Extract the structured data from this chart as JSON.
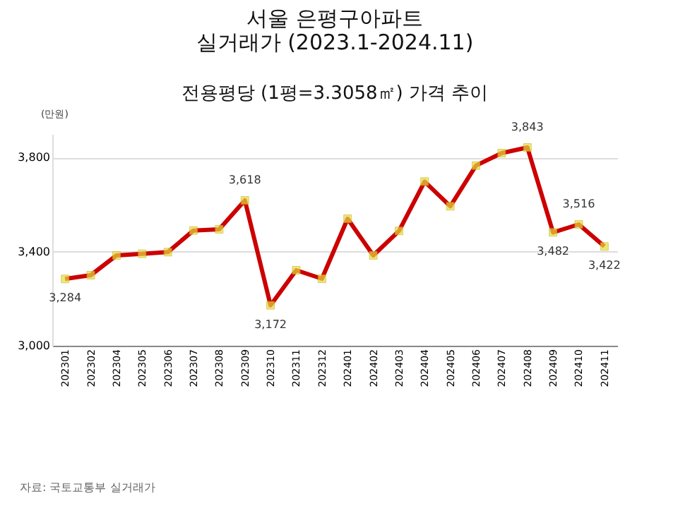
{
  "chart_data": {
    "type": "line",
    "title": "서울 은평구아파트\n실거래가 (2023.1-2024.11)",
    "subtitle": "전용평당 (1평=3.3058㎡) 가격 추이",
    "ylabel": "(만원)",
    "categories": [
      "202301",
      "202302",
      "202304",
      "202305",
      "202306",
      "202307",
      "202308",
      "202309",
      "202310",
      "202311",
      "202312",
      "202401",
      "202402",
      "202403",
      "202404",
      "202405",
      "202406",
      "202407",
      "202408",
      "202409",
      "202410",
      "202411"
    ],
    "series": [
      {
        "color": "#cc0000",
        "values": [
          3284,
          3300,
          3384,
          3391,
          3398,
          3490,
          3495,
          3618,
          3172,
          3321,
          3285,
          3540,
          3384,
          3488,
          3698,
          3593,
          3766,
          3819,
          3843,
          3482,
          3516,
          3422
        ],
        "value_labels": [
          "3,284",
          null,
          null,
          null,
          null,
          null,
          null,
          "3,618",
          "3,172",
          null,
          null,
          null,
          null,
          null,
          null,
          null,
          null,
          null,
          "3,843",
          "3,482",
          "3,516",
          "3,422"
        ]
      }
    ],
    "marker": "square",
    "ylim": [
      3000,
      3900
    ],
    "yticks": [
      {
        "value": 3000,
        "label": "3,000"
      },
      {
        "value": 3400,
        "label": "3,400"
      },
      {
        "value": 3800,
        "label": "3,800"
      }
    ],
    "grid": "y",
    "annotations": [
      "자료: 국토교통부 실거래가"
    ]
  }
}
